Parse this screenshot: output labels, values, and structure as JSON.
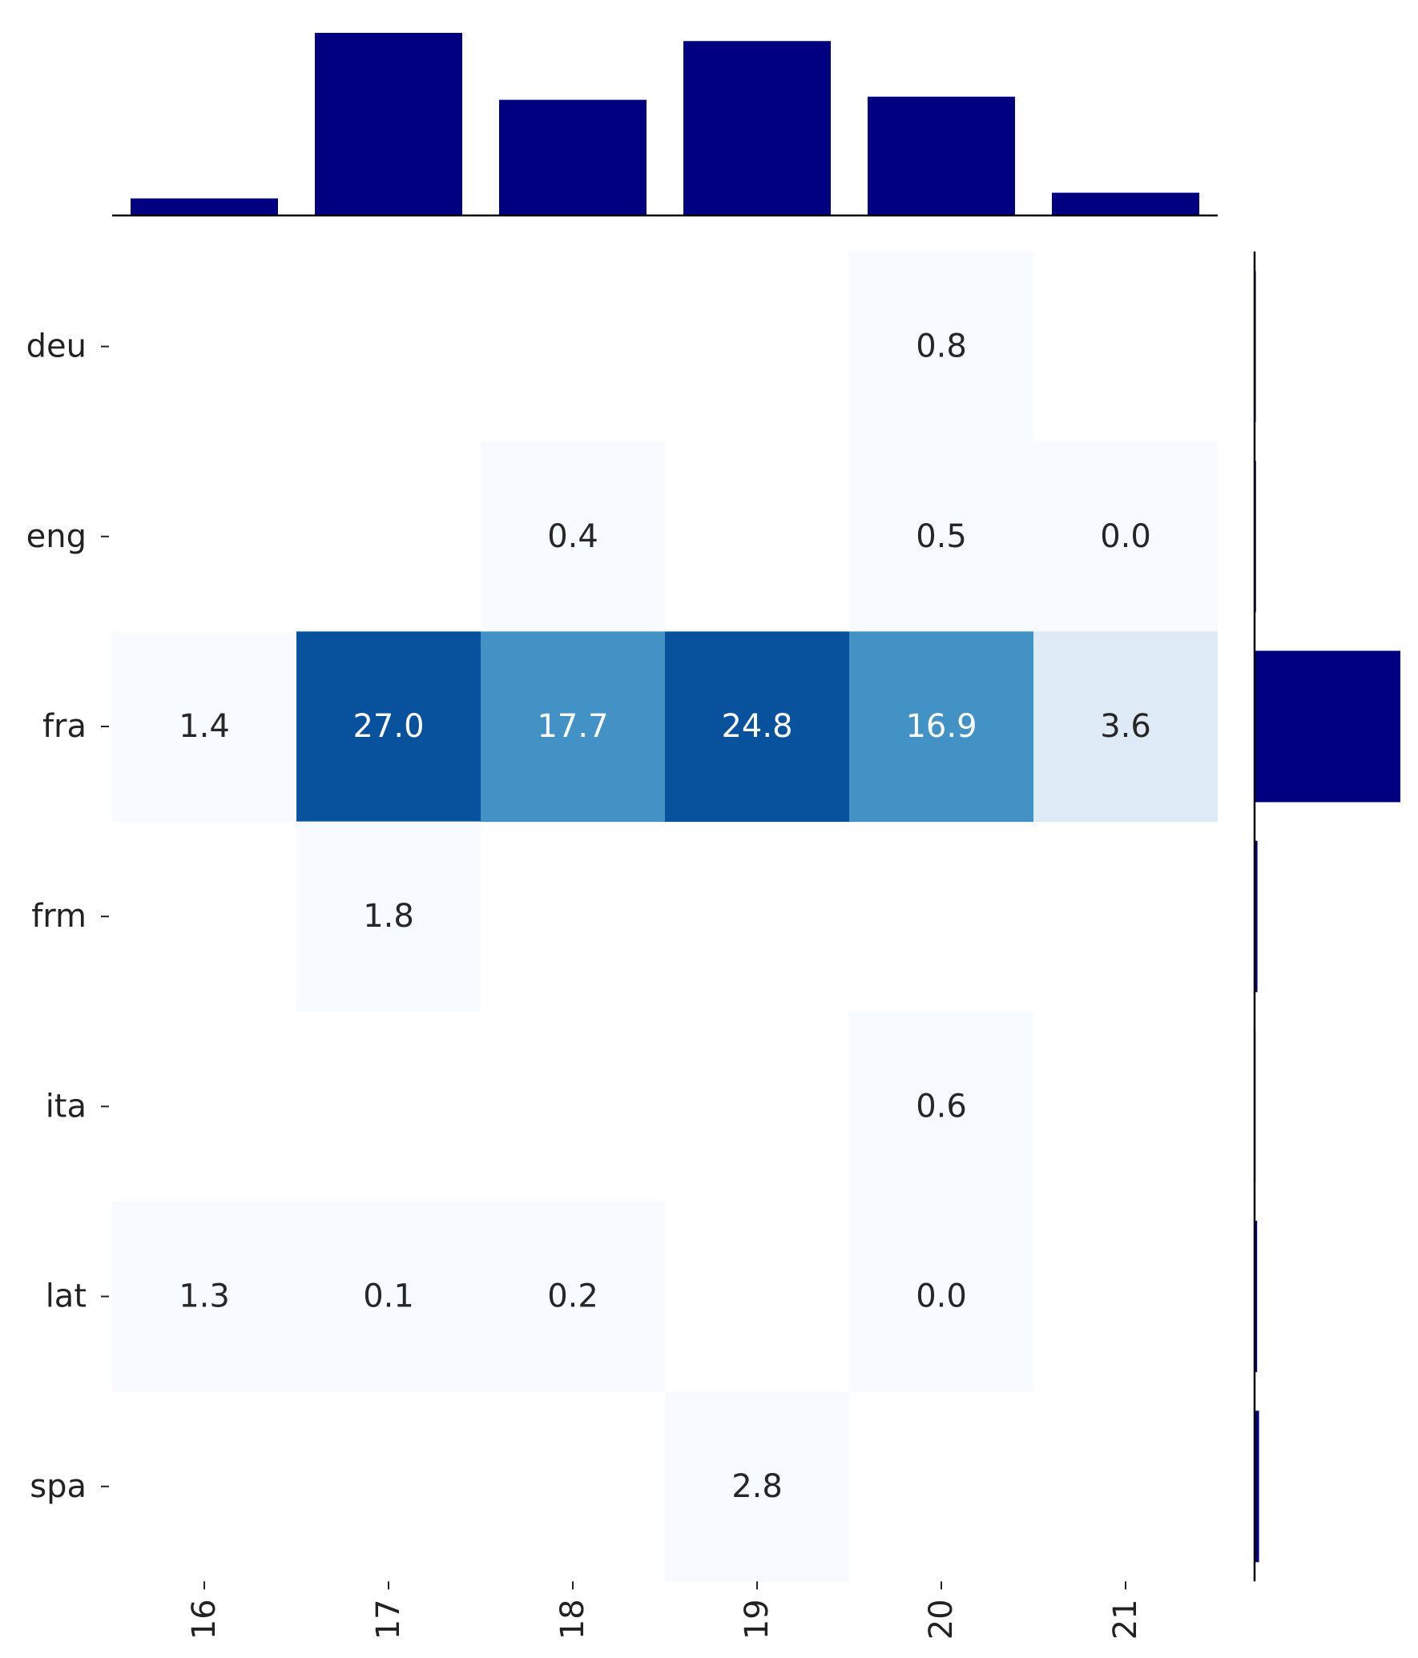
{
  "chart_data": {
    "type": "heatmap",
    "title": "",
    "xlabel": "",
    "ylabel": "",
    "x_categories": [
      "16",
      "17",
      "18",
      "19",
      "20",
      "21"
    ],
    "y_categories": [
      "deu",
      "eng",
      "fra",
      "frm",
      "ita",
      "lat",
      "spa"
    ],
    "cells": [
      [
        null,
        null,
        null,
        null,
        0.8,
        null
      ],
      [
        null,
        null,
        0.4,
        null,
        0.5,
        0.0
      ],
      [
        1.4,
        27.0,
        17.7,
        24.8,
        16.9,
        3.6
      ],
      [
        null,
        1.8,
        null,
        null,
        null,
        null
      ],
      [
        null,
        null,
        null,
        null,
        0.6,
        null
      ],
      [
        1.3,
        0.1,
        0.2,
        null,
        0.0,
        null
      ],
      [
        null,
        null,
        null,
        2.8,
        null,
        null
      ]
    ],
    "marginal_x": {
      "type": "bar",
      "categories": [
        "16",
        "17",
        "18",
        "19",
        "20",
        "21"
      ],
      "values": [
        2.7,
        28.9,
        18.3,
        27.6,
        18.8,
        3.6
      ]
    },
    "marginal_y": {
      "type": "bar",
      "orientation": "horizontal",
      "categories": [
        "deu",
        "eng",
        "fra",
        "frm",
        "ita",
        "lat",
        "spa"
      ],
      "values": [
        0.8,
        0.9,
        91.4,
        1.8,
        0.6,
        1.6,
        2.8
      ]
    },
    "colormap": "Blues",
    "marginal_color": "#000080",
    "grid": false,
    "legend": "none"
  }
}
